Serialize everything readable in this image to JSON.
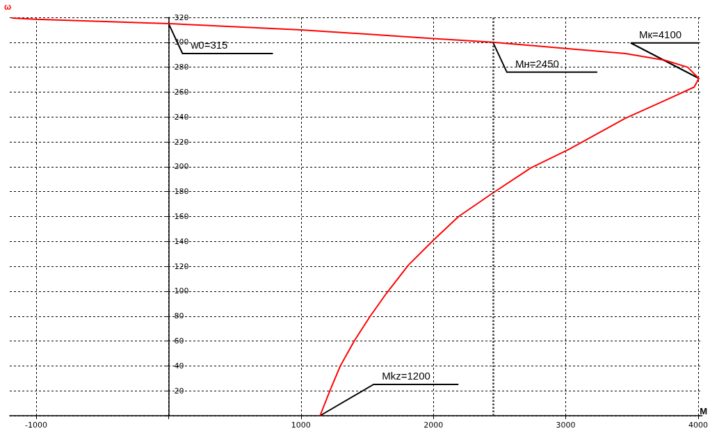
{
  "chart_data": {
    "type": "line",
    "xlabel": "M",
    "ylabel": "ω",
    "series": [
      {
        "color": "#ff0000",
        "x": [
          -1180,
          -1000,
          0,
          1000,
          2000,
          2450,
          3000,
          3450,
          3750,
          3920,
          4005,
          3970,
          3765,
          3450,
          3023,
          2735,
          2450,
          2190,
          2000,
          1811,
          1643,
          1517,
          1402,
          1297,
          1218,
          1144
        ],
        "values": [
          319.5,
          318.4,
          315,
          310,
          303,
          300,
          295,
          291,
          285.5,
          280,
          271,
          264,
          254,
          239,
          214,
          199,
          179,
          160,
          141,
          121,
          98,
          79,
          60,
          40,
          20,
          0
        ]
      }
    ],
    "xlim": [
      -1200,
      4030
    ],
    "xticks": [
      -1000,
      {
        "value": 0,
        "label": null
      },
      1000,
      2000,
      3000,
      4000
    ],
    "ylim": [
      0,
      320
    ],
    "yticks": [
      {
        "value": 0,
        "label": null
      },
      20,
      40,
      60,
      80,
      100,
      120,
      140,
      160,
      180,
      200,
      220,
      240,
      260,
      280,
      300,
      320
    ],
    "grid": true,
    "marker": "none",
    "line_style": "solid",
    "ref_lines": [
      {
        "axis": "x",
        "value": 2450,
        "line_style": "dotted"
      }
    ],
    "annotations": [
      {
        "text": "w0=315",
        "x": 0,
        "y": 315
      },
      {
        "text": "Мн=2450",
        "x": 2450,
        "y": 300
      },
      {
        "text": "Мк=4100",
        "x": 4005,
        "y": 271
      },
      {
        "text": "Mkz=1200",
        "x": 1144,
        "y": 0
      }
    ]
  }
}
